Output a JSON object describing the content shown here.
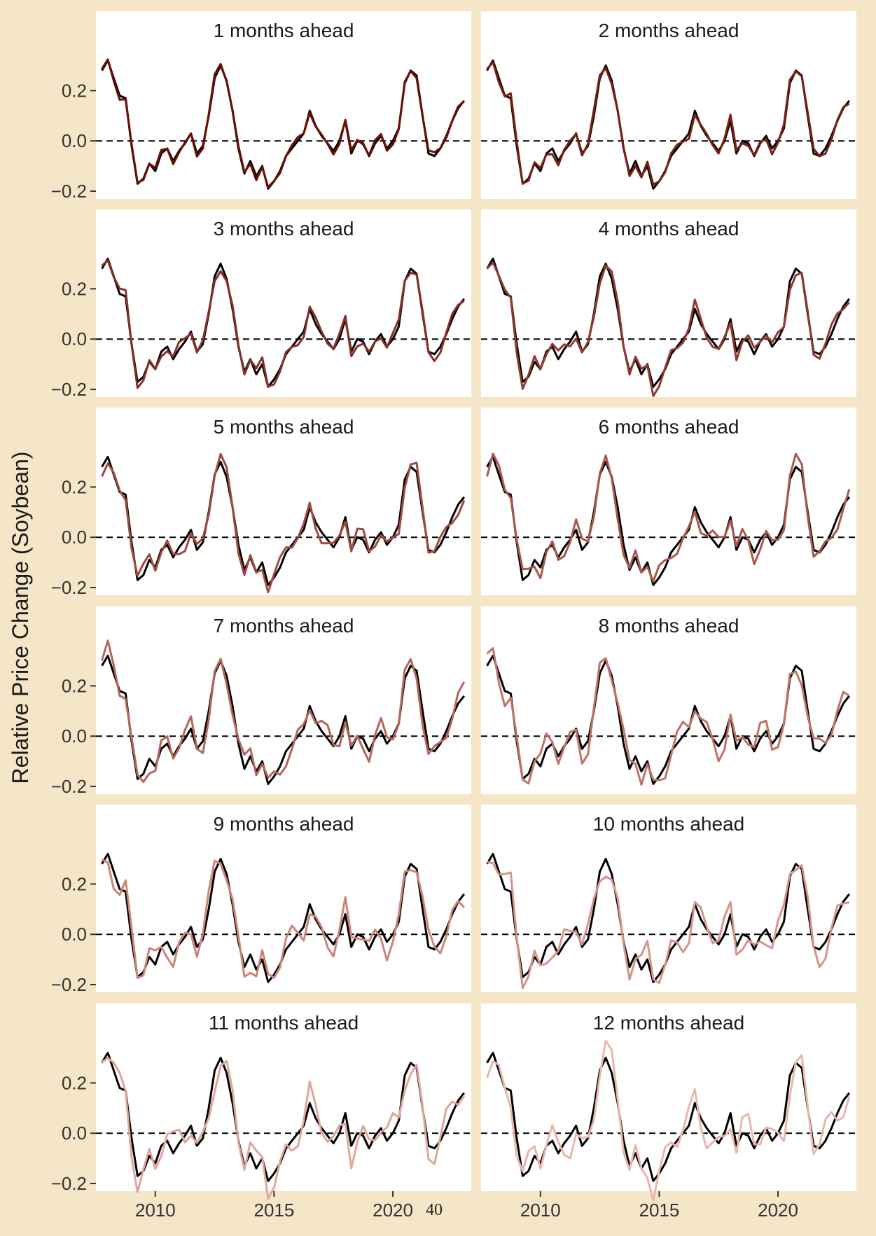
{
  "page_number": "40",
  "chart_data": {
    "type": "line",
    "ylabel": "Relative Price Change (Soybean)",
    "xlabel": "",
    "xlim": [
      2007.5,
      2023.3
    ],
    "ylim": [
      -0.225,
      0.36
    ],
    "x_ticks": [
      2010,
      2015,
      2020
    ],
    "x_tick_labels": [
      "2010",
      "2015",
      "2020"
    ],
    "y_ticks": [
      -0.2,
      0.0,
      0.2
    ],
    "y_tick_labels": [
      "−0.2",
      "0.0",
      "0.2"
    ],
    "reference_line": {
      "y": 0.0,
      "style": "dashed",
      "color": "#000000"
    },
    "grid": false,
    "background": "#f5e6c8",
    "panel_background": "#ffffff",
    "actual_color": "#000000",
    "panels": [
      {
        "title": "1 months ahead",
        "color": "#6b0f05"
      },
      {
        "title": "2 months ahead",
        "color": "#7a1f14"
      },
      {
        "title": "3 months ahead",
        "color": "#873026"
      },
      {
        "title": "4 months ahead",
        "color": "#923a30"
      },
      {
        "title": "5 months ahead",
        "color": "#9e4a40"
      },
      {
        "title": "6 months ahead",
        "color": "#a8584d"
      },
      {
        "title": "7 months ahead",
        "color": "#b4665a"
      },
      {
        "title": "8 months ahead",
        "color": "#bf7468"
      },
      {
        "title": "9 months ahead",
        "color": "#cb8679"
      },
      {
        "title": "10 months ahead",
        "color": "#d4958a"
      },
      {
        "title": "11 months ahead",
        "color": "#dfa69c"
      },
      {
        "title": "12 months ahead",
        "color": "#eab6ad"
      }
    ],
    "series": [
      {
        "x": [
          2007.75,
          2008.0,
          2008.25,
          2008.5,
          2008.75,
          2009.0,
          2009.25,
          2009.5,
          2009.75,
          2010.0,
          2010.25,
          2010.5,
          2010.75,
          2011.0,
          2011.25,
          2011.5,
          2011.75,
          2012.0,
          2012.25,
          2012.5,
          2012.75,
          2013.0,
          2013.25,
          2013.5,
          2013.75,
          2014.0,
          2014.25,
          2014.5,
          2014.75,
          2015.0,
          2015.25,
          2015.5,
          2015.75,
          2016.0,
          2016.25,
          2016.5,
          2016.75,
          2017.0,
          2017.25,
          2017.5,
          2017.75,
          2018.0,
          2018.25,
          2018.5,
          2018.75,
          2019.0,
          2019.25,
          2019.5,
          2019.75,
          2020.0,
          2020.25,
          2020.5,
          2020.75,
          2021.0,
          2021.25,
          2021.5,
          2021.75,
          2022.0,
          2022.25,
          2022.5,
          2022.75,
          2023.0
        ],
        "y": [
          0.28,
          0.32,
          0.25,
          0.18,
          0.17,
          -0.02,
          -0.17,
          -0.15,
          -0.09,
          -0.12,
          -0.05,
          -0.03,
          -0.08,
          -0.04,
          -0.01,
          0.03,
          -0.05,
          -0.02,
          0.1,
          0.25,
          0.3,
          0.24,
          0.12,
          -0.03,
          -0.13,
          -0.08,
          -0.14,
          -0.1,
          -0.19,
          -0.16,
          -0.12,
          -0.06,
          -0.03,
          0.0,
          0.03,
          0.12,
          0.06,
          0.02,
          -0.01,
          -0.04,
          0.0,
          0.08,
          -0.05,
          0.0,
          -0.01,
          -0.06,
          -0.01,
          0.02,
          -0.03,
          0.0,
          0.05,
          0.23,
          0.28,
          0.26,
          0.1,
          -0.05,
          -0.06,
          -0.03,
          0.02,
          0.08,
          0.13,
          0.16
        ]
      }
    ]
  }
}
